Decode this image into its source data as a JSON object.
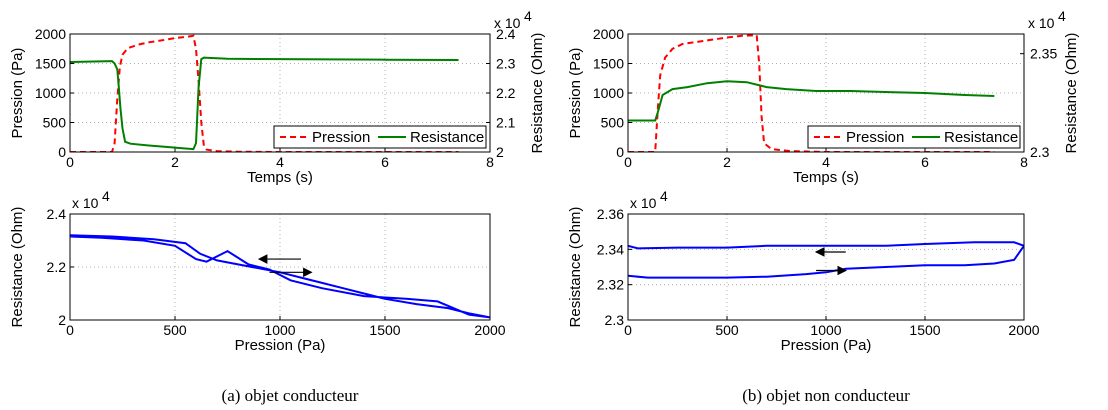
{
  "colors": {
    "pression": "#ff0000",
    "resistance": "#008000",
    "hysteresis": "#0000ff",
    "grid": "#b0b0b0"
  },
  "captions": [
    "(a)  objet conducteur",
    "(b)  objet non conducteur"
  ],
  "chart_data": [
    {
      "id": "a-top",
      "type": "line",
      "xlabel": "Temps (s)",
      "ylabel": "Pression (Pa)",
      "y2label": "Resistance (Ohm)",
      "xlim": [
        0,
        8
      ],
      "ylim": [
        0,
        2000
      ],
      "y2lim": [
        20000,
        24000
      ],
      "xticks": [
        "0",
        "2",
        "4",
        "6",
        "8"
      ],
      "yticks": [
        "0",
        "500",
        "1000",
        "1500",
        "2000"
      ],
      "y2ticks": [
        "2",
        "2.1",
        "2.2",
        "2.3",
        "2.4"
      ],
      "y2_exponent": "x 10",
      "exponent_power": "4",
      "grid": true,
      "legend": {
        "position": "bottom-right",
        "entries": [
          "Pression",
          "Resistance"
        ]
      },
      "series": [
        {
          "name": "Pression",
          "axis": "left",
          "style": "dashed",
          "color": "red",
          "points": [
            [
              0,
              0
            ],
            [
              0.8,
              0
            ],
            [
              0.85,
              150
            ],
            [
              0.9,
              900
            ],
            [
              0.95,
              1450
            ],
            [
              1.0,
              1650
            ],
            [
              1.1,
              1760
            ],
            [
              1.3,
              1820
            ],
            [
              1.5,
              1860
            ],
            [
              1.8,
              1900
            ],
            [
              2.0,
              1930
            ],
            [
              2.2,
              1950
            ],
            [
              2.35,
              1970
            ],
            [
              2.4,
              1750
            ],
            [
              2.45,
              1200
            ],
            [
              2.5,
              500
            ],
            [
              2.55,
              100
            ],
            [
              2.6,
              40
            ],
            [
              2.8,
              15
            ],
            [
              3.2,
              5
            ],
            [
              4,
              0
            ],
            [
              7.4,
              0
            ]
          ]
        },
        {
          "name": "Resistance",
          "axis": "right",
          "style": "solid",
          "color": "green",
          "points": [
            [
              0,
              23050
            ],
            [
              0.8,
              23080
            ],
            [
              0.85,
              23000
            ],
            [
              0.9,
              22800
            ],
            [
              0.93,
              22200
            ],
            [
              0.96,
              21500
            ],
            [
              1.0,
              20800
            ],
            [
              1.05,
              20350
            ],
            [
              1.15,
              20280
            ],
            [
              1.5,
              20220
            ],
            [
              1.8,
              20180
            ],
            [
              2.0,
              20150
            ],
            [
              2.2,
              20120
            ],
            [
              2.35,
              20100
            ],
            [
              2.4,
              20300
            ],
            [
              2.45,
              22200
            ],
            [
              2.5,
              23150
            ],
            [
              2.55,
              23200
            ],
            [
              3,
              23160
            ],
            [
              4,
              23150
            ],
            [
              5,
              23140
            ],
            [
              6,
              23130
            ],
            [
              7.4,
              23120
            ]
          ]
        }
      ]
    },
    {
      "id": "a-bottom",
      "type": "line",
      "xlabel": "Pression (Pa)",
      "ylabel": "Resistance (Ohm)",
      "xlim": [
        0,
        2000
      ],
      "ylim": [
        20000,
        24000
      ],
      "xticks": [
        "0",
        "500",
        "1000",
        "1500",
        "2000"
      ],
      "yticks": [
        "2",
        "2.2",
        "2.4"
      ],
      "y_exponent": "x 10",
      "exponent_power": "4",
      "grid": true,
      "series": [
        {
          "name": "",
          "color": "blue",
          "points": [
            [
              0,
              23200
            ],
            [
              200,
              23150
            ],
            [
              400,
              23050
            ],
            [
              550,
              22900
            ],
            [
              620,
              22500
            ],
            [
              700,
              22250
            ],
            [
              800,
              22100
            ],
            [
              900,
              21950
            ],
            [
              1000,
              21800
            ],
            [
              1100,
              21600
            ],
            [
              1200,
              21400
            ],
            [
              1300,
              21200
            ],
            [
              1400,
              21000
            ],
            [
              1500,
              20800
            ],
            [
              1650,
              20600
            ],
            [
              1800,
              20450
            ],
            [
              1900,
              20250
            ],
            [
              2000,
              20100
            ],
            [
              1900,
              20200
            ],
            [
              1750,
              20700
            ],
            [
              1600,
              20800
            ],
            [
              1400,
              20900
            ],
            [
              1200,
              21200
            ],
            [
              1050,
              21500
            ],
            [
              950,
              21900
            ],
            [
              850,
              22100
            ],
            [
              750,
              22600
            ],
            [
              650,
              22200
            ],
            [
              600,
              22300
            ],
            [
              500,
              22800
            ],
            [
              350,
              23000
            ],
            [
              150,
              23100
            ],
            [
              0,
              23150
            ]
          ]
        }
      ],
      "arrows": [
        {
          "from": [
            1100,
            22300
          ],
          "to": [
            900,
            22300
          ]
        },
        {
          "from": [
            950,
            21800
          ],
          "to": [
            1150,
            21800
          ]
        }
      ]
    },
    {
      "id": "b-top",
      "type": "line",
      "xlabel": "Temps (s)",
      "ylabel": "Pression (Pa)",
      "y2label": "Resistance (Ohm)",
      "xlim": [
        0,
        8
      ],
      "ylim": [
        0,
        2000
      ],
      "y2lim": [
        23000,
        23600
      ],
      "xticks": [
        "0",
        "2",
        "4",
        "6",
        "8"
      ],
      "yticks": [
        "0",
        "500",
        "1000",
        "1500",
        "2000"
      ],
      "y2ticks": [
        "2.3",
        "2.35"
      ],
      "y2_exponent": "x 10",
      "exponent_power": "4",
      "grid": true,
      "legend": {
        "position": "bottom-right",
        "entries": [
          "Pression",
          "Resistance"
        ]
      },
      "series": [
        {
          "name": "Pression",
          "axis": "left",
          "style": "dashed",
          "color": "red",
          "points": [
            [
              0,
              0
            ],
            [
              0.55,
              0
            ],
            [
              0.6,
              700
            ],
            [
              0.65,
              1300
            ],
            [
              0.75,
              1600
            ],
            [
              0.9,
              1750
            ],
            [
              1.1,
              1830
            ],
            [
              1.5,
              1880
            ],
            [
              2.0,
              1940
            ],
            [
              2.3,
              1970
            ],
            [
              2.6,
              1980
            ],
            [
              2.65,
              1500
            ],
            [
              2.7,
              600
            ],
            [
              2.75,
              150
            ],
            [
              2.9,
              50
            ],
            [
              3.3,
              15
            ],
            [
              4,
              0
            ],
            [
              7.4,
              0
            ]
          ]
        },
        {
          "name": "Resistance",
          "axis": "right",
          "style": "solid",
          "color": "green",
          "points": [
            [
              0,
              23160
            ],
            [
              0.55,
              23160
            ],
            [
              0.6,
              23200
            ],
            [
              0.7,
              23290
            ],
            [
              0.9,
              23320
            ],
            [
              1.2,
              23330
            ],
            [
              1.6,
              23350
            ],
            [
              2.0,
              23360
            ],
            [
              2.4,
              23355
            ],
            [
              2.8,
              23330
            ],
            [
              3.2,
              23320
            ],
            [
              3.8,
              23310
            ],
            [
              4.5,
              23310
            ],
            [
              5.2,
              23305
            ],
            [
              6.0,
              23300
            ],
            [
              6.8,
              23290
            ],
            [
              7.4,
              23285
            ]
          ]
        }
      ]
    },
    {
      "id": "b-bottom",
      "type": "line",
      "xlabel": "Pression (Pa)",
      "ylabel": "Resistance (Ohm)",
      "xlim": [
        0,
        2000
      ],
      "ylim": [
        23000,
        23600
      ],
      "xticks": [
        "0",
        "500",
        "1000",
        "1500",
        "2000"
      ],
      "yticks": [
        "2.3",
        "2.32",
        "2.34",
        "2.36"
      ],
      "y_exponent": "x 10",
      "exponent_power": "4",
      "grid": true,
      "series": [
        {
          "name": "",
          "color": "blue",
          "points": [
            [
              0,
              23250
            ],
            [
              100,
              23240
            ],
            [
              300,
              23240
            ],
            [
              500,
              23240
            ],
            [
              700,
              23245
            ],
            [
              900,
              23260
            ],
            [
              1000,
              23270
            ],
            [
              1100,
              23290
            ],
            [
              1300,
              23300
            ],
            [
              1500,
              23310
            ],
            [
              1700,
              23310
            ],
            [
              1850,
              23320
            ],
            [
              1950,
              23340
            ],
            [
              2000,
              23420
            ],
            [
              1950,
              23440
            ],
            [
              1750,
              23440
            ],
            [
              1500,
              23430
            ],
            [
              1300,
              23420
            ],
            [
              1100,
              23420
            ],
            [
              900,
              23420
            ],
            [
              700,
              23420
            ],
            [
              500,
              23410
            ],
            [
              250,
              23410
            ],
            [
              50,
              23405
            ],
            [
              0,
              23420
            ]
          ]
        }
      ],
      "arrows": [
        {
          "from": [
            1100,
            23385
          ],
          "to": [
            950,
            23385
          ]
        },
        {
          "from": [
            950,
            23280
          ],
          "to": [
            1100,
            23280
          ]
        }
      ]
    }
  ]
}
